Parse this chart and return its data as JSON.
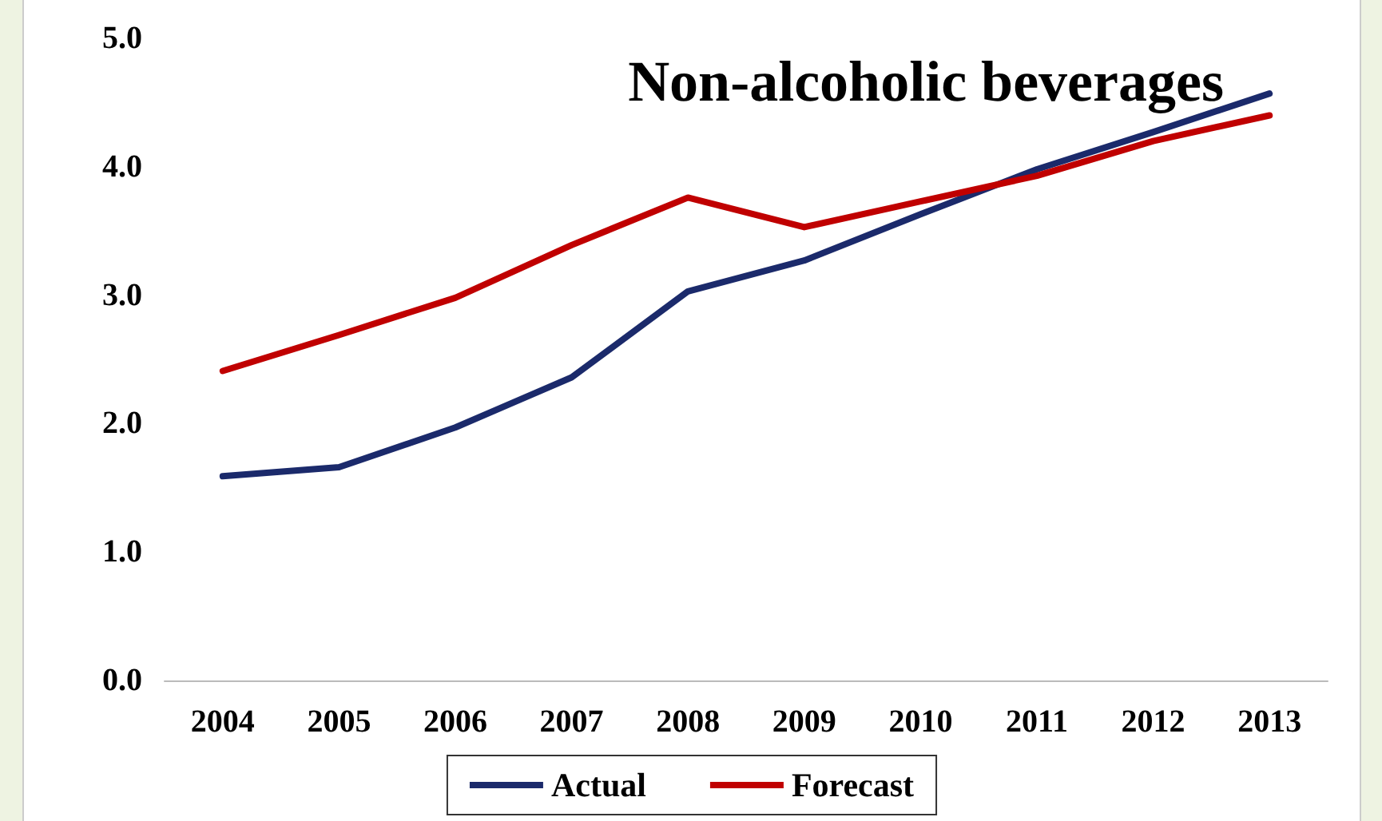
{
  "chart_data": {
    "type": "line",
    "title": "Non-alcoholic beverages",
    "categories": [
      "2004",
      "2005",
      "2006",
      "2007",
      "2008",
      "2009",
      "2010",
      "2011",
      "2012",
      "2013"
    ],
    "series": [
      {
        "name": "Actual",
        "color": "#1b2a6b",
        "values": [
          1.59,
          1.66,
          1.97,
          2.36,
          3.03,
          3.27,
          3.63,
          3.98,
          4.27,
          4.57
        ]
      },
      {
        "name": "Forecast",
        "color": "#c00000",
        "values": [
          2.41,
          2.69,
          2.98,
          3.39,
          3.76,
          3.53,
          3.73,
          3.93,
          4.2,
          4.4
        ]
      }
    ],
    "ylim": [
      0,
      5
    ],
    "yticks": [
      {
        "value": 0,
        "label": "0.0"
      },
      {
        "value": 1,
        "label": "1.0"
      },
      {
        "value": 2,
        "label": "2.0"
      },
      {
        "value": 3,
        "label": "3.0"
      },
      {
        "value": 4,
        "label": "4.0"
      },
      {
        "value": 5,
        "label": "5.0"
      }
    ],
    "grid": false,
    "legend": "bottom",
    "marker": "none",
    "line_style": "solid"
  }
}
